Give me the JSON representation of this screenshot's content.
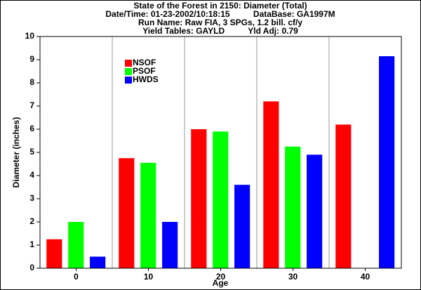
{
  "chart_data": {
    "type": "bar",
    "title": "State of the Forest in 2150: Diameter (Total)",
    "subtitle": [
      "Date/Time: 01-23-2002/10:18:15          DataBase: GA1997M",
      "Run Name: Raw FIA, 3 SPGs, 1.2 bill. cf/y",
      "Yield Tables: GAYLD          Yld Adj: 0.79"
    ],
    "x_label": "Age",
    "y_label": "Diameter (inches)",
    "categories": [
      "0",
      "10",
      "20",
      "30",
      "40"
    ],
    "series": [
      {
        "name": "NSOF",
        "color": "#ff0000",
        "values": [
          1.25,
          4.75,
          6.0,
          7.2,
          6.2
        ]
      },
      {
        "name": "PSOF",
        "color": "#00ff00",
        "values": [
          2.0,
          4.55,
          5.9,
          5.25,
          0
        ]
      },
      {
        "name": "HWDS",
        "color": "#0000ff",
        "values": [
          0.5,
          2.0,
          3.6,
          4.9,
          9.15
        ]
      }
    ],
    "ylim": [
      0,
      10
    ],
    "yticks": [
      0,
      1,
      2,
      3,
      4,
      5,
      6,
      7,
      8,
      9,
      10
    ],
    "grid": true,
    "legend": "upper-left"
  }
}
